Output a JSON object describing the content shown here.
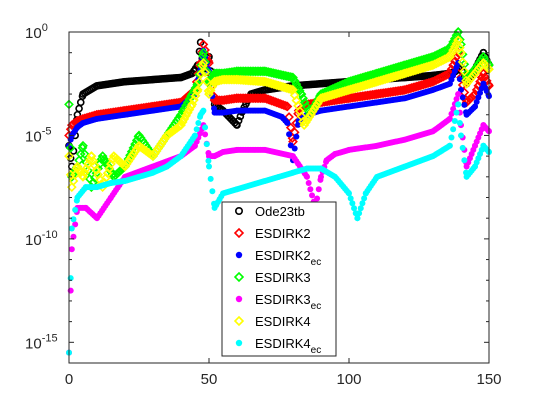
{
  "chart_data": {
    "type": "scatter",
    "title": "",
    "xlabel": "",
    "ylabel": "",
    "xlim": [
      0,
      150
    ],
    "ylim": [
      1e-16,
      1
    ],
    "yscale": "log",
    "grid": false,
    "legend_position": "bottom-center",
    "x_ticks": [
      {
        "value": 0,
        "label": "0"
      },
      {
        "value": 50,
        "label": "50"
      },
      {
        "value": 100,
        "label": "100"
      },
      {
        "value": 150,
        "label": "150"
      }
    ],
    "y_ticks": [
      {
        "exp": -15,
        "base": "10",
        "sup": "-15"
      },
      {
        "exp": -10,
        "base": "10",
        "sup": "-10"
      },
      {
        "exp": -5,
        "base": "10",
        "sup": "-5"
      },
      {
        "exp": 0,
        "base": "10",
        "sup": "0"
      }
    ],
    "series": [
      {
        "name": "Ode23tb",
        "label": "Ode23tb",
        "sub": "",
        "marker": "circle-open",
        "color": "#000000",
        "x": [
          0,
          1,
          3,
          5,
          10,
          20,
          30,
          40,
          44,
          46,
          47,
          48,
          50,
          52,
          55,
          60,
          62,
          65,
          70,
          80,
          90,
          100,
          110,
          120,
          130,
          136,
          138,
          140,
          142,
          145,
          148,
          150
        ],
        "y": [
          -5.5,
          -6.5,
          -4.0,
          -3.0,
          -2.6,
          -2.4,
          -2.3,
          -2.2,
          -2.0,
          -1.6,
          -0.5,
          -1.8,
          -1.2,
          -3.5,
          -3.8,
          -4.5,
          -3.8,
          -3.0,
          -2.8,
          -2.6,
          -2.5,
          -2.4,
          -2.3,
          -2.2,
          -2.1,
          -2.0,
          -1.9,
          -1.7,
          -2.5,
          -1.8,
          -1.0,
          -1.6
        ]
      },
      {
        "name": "ESDIRK2",
        "label": "ESDIRK2",
        "sub": "",
        "marker": "diamond-open",
        "color": "#ff0000",
        "x": [
          0,
          1,
          3,
          5,
          10,
          20,
          30,
          40,
          45,
          47,
          48,
          50,
          52,
          55,
          60,
          70,
          78,
          80,
          82,
          85,
          90,
          100,
          110,
          120,
          130,
          136,
          139,
          140,
          142,
          145,
          148,
          150
        ],
        "y": [
          -5.0,
          -4.5,
          -4.3,
          -4.2,
          -4.0,
          -3.8,
          -3.6,
          -3.4,
          -2.8,
          -1.5,
          -0.6,
          -1.5,
          -3.3,
          -3.3,
          -3.2,
          -3.2,
          -3.6,
          -5.3,
          -3.8,
          -3.5,
          -3.4,
          -3.2,
          -3.0,
          -2.8,
          -2.4,
          -2.0,
          -1.0,
          -2.2,
          -3.4,
          -3.0,
          -2.0,
          -2.6
        ]
      },
      {
        "name": "ESDIRK2_ec",
        "label": "ESDIRK2",
        "sub": "ec",
        "marker": "dot",
        "color": "#0000ff",
        "x": [
          0,
          1,
          3,
          5,
          10,
          20,
          30,
          40,
          45,
          47,
          48,
          50,
          52,
          55,
          60,
          70,
          76,
          78,
          80,
          82,
          85,
          90,
          100,
          110,
          120,
          130,
          136,
          139,
          140,
          142,
          145,
          148,
          150
        ],
        "y": [
          -5.5,
          -5.0,
          -4.6,
          -4.4,
          -4.2,
          -4.0,
          -3.8,
          -3.6,
          -3.0,
          -1.8,
          -0.9,
          -1.9,
          -3.9,
          -3.9,
          -3.8,
          -3.8,
          -4.1,
          -4.4,
          -6.2,
          -4.3,
          -4.0,
          -3.8,
          -3.6,
          -3.4,
          -3.2,
          -2.8,
          -2.5,
          -1.5,
          -2.8,
          -4.0,
          -3.6,
          -2.5,
          -3.1
        ]
      },
      {
        "name": "ESDIRK3",
        "label": "ESDIRK3",
        "sub": "",
        "marker": "diamond-open",
        "color": "#00ff00",
        "x": [
          0,
          1,
          3,
          5,
          8,
          12,
          16,
          20,
          25,
          30,
          35,
          40,
          44,
          46,
          48,
          50,
          52,
          55,
          60,
          70,
          80,
          83,
          86,
          90,
          100,
          110,
          120,
          130,
          136,
          139,
          140,
          142,
          145,
          148,
          150
        ],
        "y": [
          -3.5,
          -7.0,
          -6.5,
          -5.5,
          -7.5,
          -6.0,
          -7.0,
          -6.5,
          -5.0,
          -6.0,
          -5.0,
          -4.0,
          -3.0,
          -2.5,
          -1.0,
          -2.5,
          -2.0,
          -2.0,
          -1.9,
          -1.9,
          -2.2,
          -3.0,
          -4.0,
          -3.0,
          -2.4,
          -2.0,
          -1.6,
          -1.2,
          -0.8,
          0.0,
          -0.6,
          -2.2,
          -1.8,
          -1.2,
          -1.6
        ]
      },
      {
        "name": "ESDIRK3_ec",
        "label": "ESDIRK3",
        "sub": "ec",
        "marker": "dot",
        "color": "#ff00ff",
        "x": [
          0,
          1,
          3,
          6,
          10,
          15,
          20,
          30,
          40,
          45,
          48,
          50,
          52,
          55,
          60,
          70,
          80,
          85,
          88,
          90,
          92,
          95,
          100,
          110,
          120,
          130,
          136,
          139,
          140,
          142,
          145,
          148,
          150
        ],
        "y": [
          -15.5,
          -10.5,
          -8.5,
          -8.5,
          -9.0,
          -8.0,
          -7.0,
          -6.5,
          -6.0,
          -5.5,
          -4.5,
          -6.0,
          -6.0,
          -5.8,
          -5.7,
          -5.7,
          -6.0,
          -7.0,
          -8.5,
          -7.0,
          -6.2,
          -5.9,
          -5.7,
          -5.5,
          -5.2,
          -4.8,
          -4.2,
          -3.0,
          -4.5,
          -6.5,
          -5.5,
          -4.5,
          -4.8
        ]
      },
      {
        "name": "ESDIRK4",
        "label": "ESDIRK4",
        "sub": "",
        "marker": "diamond-open",
        "color": "#ffff00",
        "x": [
          0,
          1,
          3,
          5,
          8,
          12,
          16,
          20,
          25,
          30,
          35,
          40,
          44,
          46,
          48,
          50,
          52,
          55,
          60,
          70,
          80,
          84,
          90,
          100,
          110,
          120,
          130,
          136,
          139,
          140,
          142,
          145,
          148,
          150
        ],
        "y": [
          -6.0,
          -7.5,
          -6.5,
          -7.0,
          -6.0,
          -7.5,
          -6.0,
          -6.5,
          -5.5,
          -6.0,
          -5.0,
          -4.5,
          -3.5,
          -2.8,
          -1.5,
          -3.0,
          -2.4,
          -2.3,
          -2.3,
          -2.4,
          -2.8,
          -4.5,
          -3.2,
          -2.8,
          -2.4,
          -2.0,
          -1.6,
          -1.2,
          -0.4,
          -1.0,
          -2.5,
          -2.0,
          -1.5,
          -1.8
        ]
      },
      {
        "name": "ESDIRK4_ec",
        "label": "ESDIRK4",
        "sub": "ec",
        "marker": "dot",
        "color": "#00ffff",
        "x": [
          0,
          1,
          3,
          6,
          10,
          15,
          20,
          25,
          30,
          35,
          40,
          45,
          47,
          48,
          50,
          52,
          55,
          60,
          70,
          75,
          80,
          85,
          90,
          95,
          100,
          103,
          106,
          110,
          120,
          130,
          136,
          139,
          140,
          142,
          145,
          148,
          150
        ],
        "y": [
          -15.5,
          -9.5,
          -8.0,
          -7.5,
          -7.5,
          -7.3,
          -7.2,
          -7.0,
          -6.8,
          -6.5,
          -6.0,
          -5.0,
          -4.0,
          -3.8,
          -6.5,
          -8.5,
          -7.8,
          -7.6,
          -7.2,
          -7.0,
          -6.8,
          -6.6,
          -6.6,
          -7.0,
          -7.8,
          -9.0,
          -7.8,
          -7.0,
          -6.5,
          -6.0,
          -5.5,
          -3.5,
          -5.0,
          -7.0,
          -6.5,
          -5.5,
          -5.8
        ]
      }
    ]
  }
}
